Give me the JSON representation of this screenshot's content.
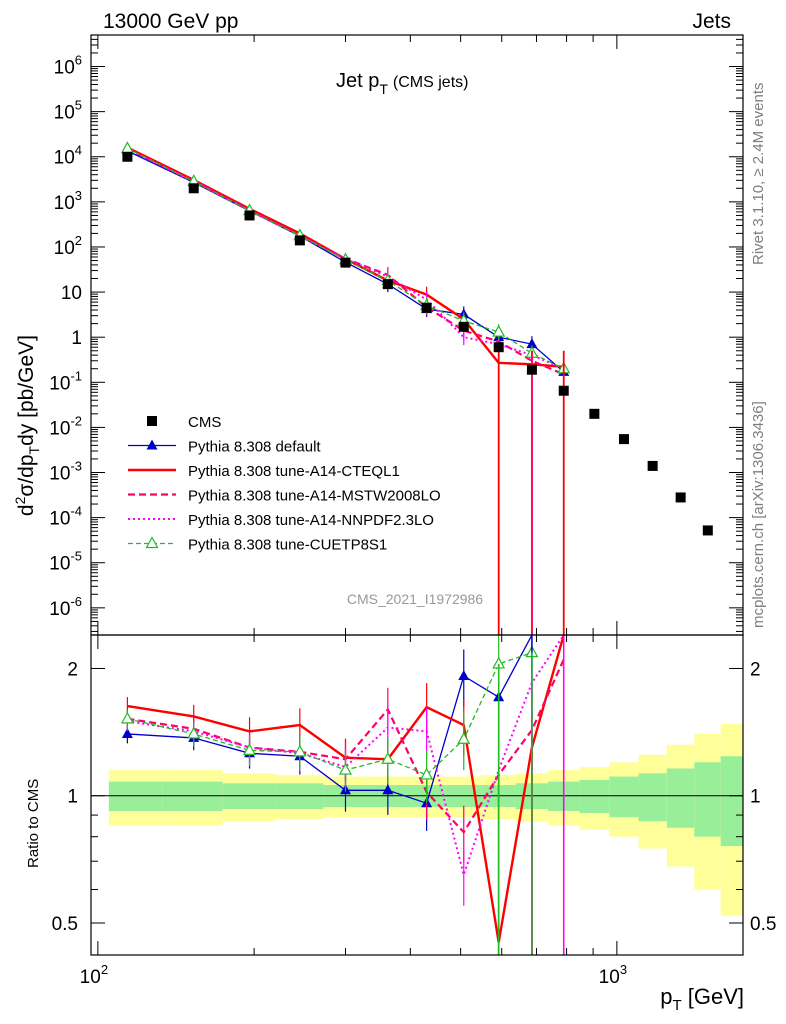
{
  "header": {
    "left": "13000 GeV pp",
    "right": "Jets"
  },
  "side_labels": {
    "rivet": "Rivet 3.1.10, ≥ 2.4M events",
    "mcplots": "mcplots.cern.ch [arXiv:1306.3436]"
  },
  "chart_data": [
    {
      "type": "scatter",
      "title": "Jet p_T (CMS jets)",
      "title_main": "Jet p",
      "title_sub": "T",
      "title_extra": "(CMS jets)",
      "ylabel": "d²σ/dp_T dy [pb/GeV]",
      "xlabel": "p_T [GeV]",
      "xscale": "log",
      "yscale": "log",
      "xlim": [
        97,
        1750
      ],
      "ylim": [
        2.5e-07,
        5000000.0
      ],
      "watermark": "CMS_2021_I1972986",
      "legend_position": "lower-left",
      "x": [
        114,
        153,
        196,
        245,
        300,
        362,
        430,
        507,
        592,
        686,
        790,
        905,
        1032,
        1172,
        1327,
        1497
      ],
      "series": [
        {
          "name": "CMS",
          "color": "#000000",
          "style": "square-marker",
          "values": [
            10000,
            2000,
            500,
            140,
            45,
            15,
            4.5,
            1.7,
            0.6,
            0.19,
            0.065,
            0.02,
            0.0055,
            0.0014,
            0.00028,
            5.2e-05
          ]
        },
        {
          "name": "Pythia 8.308 default",
          "color": "#0000cc",
          "style": "solid-triangle",
          "values": [
            13500,
            2700,
            630,
            175,
            46,
            15,
            4.2,
            3.2,
            1.0,
            0.7,
            0.17
          ]
        },
        {
          "name": "Pythia 8.308 tune-A14-CTEQL1",
          "color": "#ff0000",
          "style": "solid-thick",
          "values": [
            16000,
            3050,
            700,
            200,
            54,
            18,
            8.8,
            2.5,
            0.27,
            0.25,
            0.22
          ]
        },
        {
          "name": "Pythia 8.308 tune-A14-MSTW2008LO",
          "color": "#ff0066",
          "style": "dashed",
          "values": [
            15000,
            2900,
            650,
            180,
            55,
            24,
            4.6,
            1.4,
            0.8,
            0.3,
            0.15
          ]
        },
        {
          "name": "Pythia 8.308 tune-A14-NNPDF2.3LO",
          "color": "#ff00ff",
          "style": "dotted",
          "values": [
            15000,
            2800,
            650,
            175,
            54,
            22,
            6.8,
            1.0,
            0.7,
            0.4,
            0.2
          ]
        },
        {
          "name": "Pythia 8.308 tune-CUETP8S1",
          "color": "#22bb22",
          "style": "dashed-open-triangle",
          "values": [
            15200,
            2850,
            640,
            178,
            52,
            18,
            5.0,
            2.3,
            1.3,
            0.44,
            0.2
          ]
        }
      ]
    },
    {
      "type": "line",
      "ylabel": "Ratio to CMS",
      "xscale": "log",
      "yscale": "log",
      "xlim": [
        97,
        1750
      ],
      "ylim": [
        0.42,
        2.4
      ],
      "x": [
        114,
        153,
        196,
        245,
        300,
        362,
        430,
        507,
        592,
        686,
        790
      ],
      "uncertainty_band_edges": [
        105,
        133,
        174,
        220,
        272,
        330,
        395,
        468,
        548,
        638,
        737,
        847,
        967,
        1101,
        1248,
        1410,
        1585,
        1750
      ],
      "band_inner": [
        0.08,
        0.08,
        0.07,
        0.07,
        0.06,
        0.06,
        0.06,
        0.06,
        0.06,
        0.07,
        0.08,
        0.09,
        0.11,
        0.13,
        0.16,
        0.2,
        0.24
      ],
      "band_outer": [
        0.15,
        0.15,
        0.13,
        0.12,
        0.11,
        0.11,
        0.11,
        0.11,
        0.12,
        0.13,
        0.15,
        0.17,
        0.2,
        0.25,
        0.32,
        0.4,
        0.48
      ],
      "band_colors": {
        "inner": "#99ee99",
        "outer": "#ffff99"
      },
      "series": [
        {
          "name": "Pythia 8.308 default",
          "color": "#0000cc",
          "values": [
            1.4,
            1.37,
            1.26,
            1.24,
            1.03,
            1.03,
            0.96,
            1.92,
            1.71,
            3.7,
            null
          ]
        },
        {
          "name": "Pythia 8.308 tune-A14-CTEQL1",
          "color": "#ff0000",
          "values": [
            1.63,
            1.54,
            1.42,
            1.47,
            1.23,
            1.22,
            1.62,
            1.47,
            0.45,
            1.3,
            3.3
          ]
        },
        {
          "name": "Pythia 8.308 tune-A14-MSTW2008LO",
          "color": "#ff0066",
          "values": [
            1.52,
            1.44,
            1.3,
            1.27,
            1.22,
            1.6,
            1.02,
            0.82,
            1.12,
            1.43,
            2.1
          ]
        },
        {
          "name": "Pythia 8.308 tune-A14-NNPDF2.3LO",
          "color": "#ff00ff",
          "values": [
            1.5,
            1.42,
            1.3,
            1.26,
            1.17,
            1.45,
            1.42,
            0.65,
            1.15,
            1.85,
            2.8
          ]
        },
        {
          "name": "Pythia 8.308 tune-CUETP8S1",
          "color": "#22bb22",
          "values": [
            1.52,
            1.4,
            1.28,
            1.27,
            1.15,
            1.22,
            1.12,
            1.36,
            2.05,
            2.18,
            null
          ]
        }
      ]
    }
  ],
  "axes": {
    "top_y_ticks": [
      {
        "base": "10",
        "exp": "-6",
        "value": 1e-06
      },
      {
        "base": "10",
        "exp": "-5",
        "value": 1e-05
      },
      {
        "base": "10",
        "exp": "-4",
        "value": 0.0001
      },
      {
        "base": "10",
        "exp": "-3",
        "value": 0.001
      },
      {
        "base": "10",
        "exp": "-2",
        "value": 0.01
      },
      {
        "base": "10",
        "exp": "-1",
        "value": 0.1
      },
      {
        "base": "1",
        "exp": "",
        "value": 1
      },
      {
        "base": "10",
        "exp": "",
        "value": 10
      },
      {
        "base": "10",
        "exp": "2",
        "value": 100
      },
      {
        "base": "10",
        "exp": "3",
        "value": 1000
      },
      {
        "base": "10",
        "exp": "4",
        "value": 10000
      },
      {
        "base": "10",
        "exp": "5",
        "value": 100000
      },
      {
        "base": "10",
        "exp": "6",
        "value": 1000000
      }
    ],
    "ratio_y_ticks": [
      {
        "text": "2",
        "value": 2
      },
      {
        "text": "1",
        "value": 1
      },
      {
        "text": "0.5",
        "value": 0.5
      }
    ],
    "x_ticks": [
      {
        "base": "10",
        "exp": "2",
        "value": 100
      },
      {
        "base": "10",
        "exp": "3",
        "value": 1000
      }
    ]
  }
}
